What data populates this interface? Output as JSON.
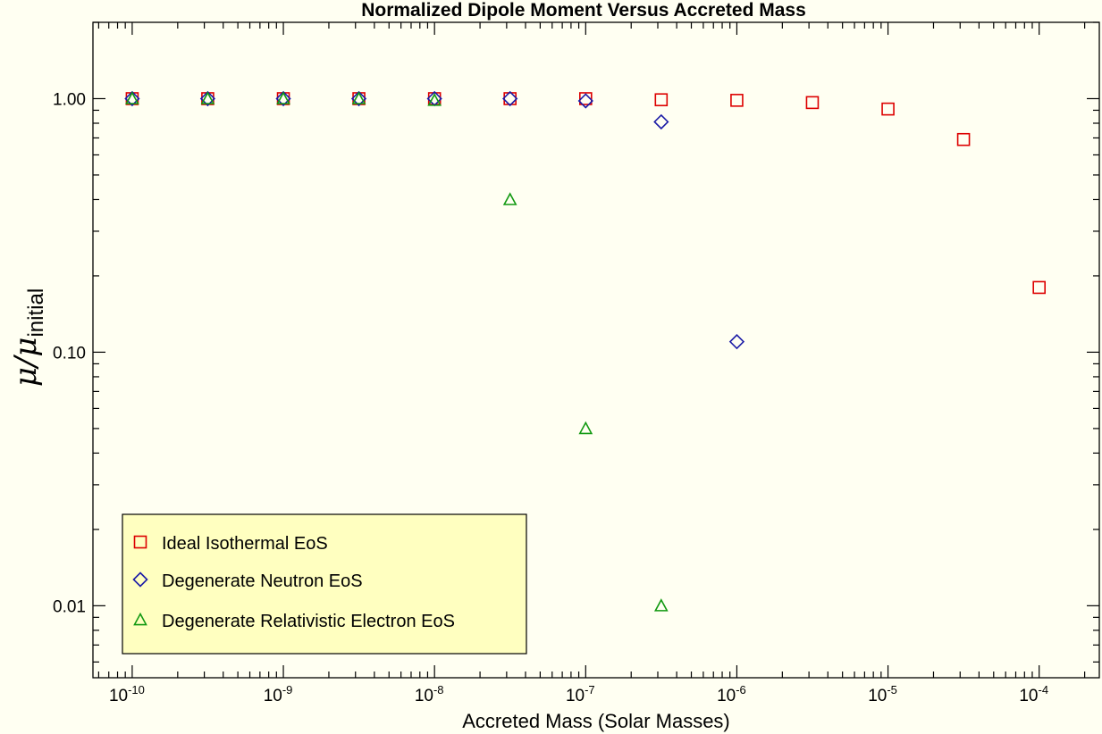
{
  "chart_data": {
    "type": "scatter",
    "title": "Normalized Dipole Moment Versus Accreted Mass",
    "xlabel": "Accreted Mass (Solar Masses)",
    "ylabel_main": "μ/μ",
    "ylabel_sub": "initial",
    "x_scale": "log",
    "y_scale": "log",
    "xlim": [
      5.5e-11,
      0.00025
    ],
    "ylim": [
      0.0052,
      2.0
    ],
    "x_ticks": [
      {
        "value": 1e-10,
        "base": "10",
        "exp": "-10"
      },
      {
        "value": 1e-09,
        "base": "10",
        "exp": "-9"
      },
      {
        "value": 1e-08,
        "base": "10",
        "exp": "-8"
      },
      {
        "value": 1e-07,
        "base": "10",
        "exp": "-7"
      },
      {
        "value": 1e-06,
        "base": "10",
        "exp": "-6"
      },
      {
        "value": 1e-05,
        "base": "10",
        "exp": "-5"
      },
      {
        "value": 0.0001,
        "base": "10",
        "exp": "-4"
      }
    ],
    "y_ticks": [
      {
        "value": 1.0,
        "label": "1.00"
      },
      {
        "value": 0.1,
        "label": "0.10"
      },
      {
        "value": 0.01,
        "label": "0.01"
      }
    ],
    "grid": false,
    "legend_position": "bottom-left",
    "series": [
      {
        "name": "Ideal Isothermal EoS",
        "marker": "square",
        "color": "#dd0000",
        "points": [
          [
            1e-10,
            1.0
          ],
          [
            3.16e-10,
            1.0
          ],
          [
            1e-09,
            1.0
          ],
          [
            3.16e-09,
            1.0
          ],
          [
            1e-08,
            1.0
          ],
          [
            3.16e-08,
            1.0
          ],
          [
            1e-07,
            1.0
          ],
          [
            3.16e-07,
            0.99
          ],
          [
            1e-06,
            0.985
          ],
          [
            3.16e-06,
            0.965
          ],
          [
            1e-05,
            0.91
          ],
          [
            3.16e-05,
            0.69
          ],
          [
            0.0001,
            0.18
          ]
        ]
      },
      {
        "name": "Degenerate Neutron EoS",
        "marker": "diamond",
        "color": "#1a1aa6",
        "points": [
          [
            1e-10,
            1.0
          ],
          [
            3.16e-10,
            1.0
          ],
          [
            1e-09,
            1.0
          ],
          [
            3.16e-09,
            1.0
          ],
          [
            1e-08,
            1.0
          ],
          [
            3.16e-08,
            1.0
          ],
          [
            1e-07,
            0.98
          ],
          [
            3.16e-07,
            0.81
          ],
          [
            1e-06,
            0.11
          ]
        ]
      },
      {
        "name": "Degenerate Relativistic Electron EoS",
        "marker": "triangle",
        "color": "#119911",
        "points": [
          [
            1e-10,
            1.0
          ],
          [
            3.16e-10,
            1.0
          ],
          [
            1e-09,
            1.0
          ],
          [
            3.16e-09,
            1.0
          ],
          [
            1e-08,
            0.985
          ],
          [
            3.16e-08,
            0.4
          ],
          [
            1e-07,
            0.05
          ],
          [
            3.16e-07,
            0.01
          ]
        ]
      }
    ],
    "legend_box_color": "#ffffc0"
  }
}
